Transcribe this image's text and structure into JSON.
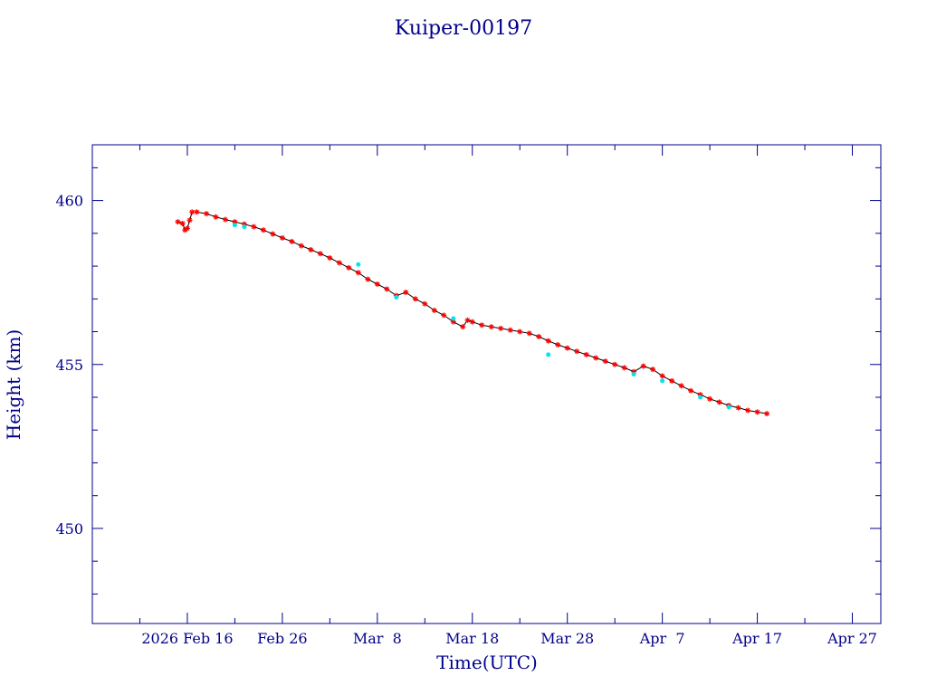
{
  "chart_data": {
    "type": "scatter",
    "title": "Kuiper-00197",
    "xlabel": "Time(UTC)",
    "ylabel": "Height (km)",
    "x_range": [
      "2026-02-06",
      "2026-04-30"
    ],
    "ylim": [
      447.1,
      461.7
    ],
    "x_ticks": [
      {
        "date": "2026-02-16",
        "label": "2026 Feb 16"
      },
      {
        "date": "2026-02-26",
        "label": "Feb 26"
      },
      {
        "date": "2026-03-08",
        "label": "Mar  8"
      },
      {
        "date": "2026-03-18",
        "label": "Mar 18"
      },
      {
        "date": "2026-03-28",
        "label": "Mar 28"
      },
      {
        "date": "2026-04-07",
        "label": "Apr  7"
      },
      {
        "date": "2026-04-17",
        "label": "Apr 17"
      },
      {
        "date": "2026-04-27",
        "label": "Apr 27"
      }
    ],
    "y_ticks": [
      450,
      455,
      460
    ],
    "grid": false,
    "colors": {
      "axis": "#00008b",
      "text": "#00008b",
      "primary": "#ff0000",
      "secondary": "#00e5ee",
      "line": "#000000"
    },
    "series": [
      {
        "marker": "star",
        "color": "#ff0000",
        "points": [
          [
            "2026-02-15",
            459.35
          ],
          [
            "2026-02-15T12:00",
            459.3
          ],
          [
            "2026-02-15T18:00",
            459.1
          ],
          [
            "2026-02-16",
            459.15
          ],
          [
            "2026-02-16T06:00",
            459.4
          ],
          [
            "2026-02-16T12:00",
            459.65
          ],
          [
            "2026-02-17",
            459.65
          ],
          [
            "2026-02-18",
            459.6
          ],
          [
            "2026-02-19",
            459.5
          ],
          [
            "2026-02-20",
            459.42
          ],
          [
            "2026-02-21",
            459.35
          ],
          [
            "2026-02-22",
            459.28
          ],
          [
            "2026-02-23",
            459.2
          ],
          [
            "2026-02-24",
            459.1
          ],
          [
            "2026-02-25",
            458.98
          ],
          [
            "2026-02-26",
            458.86
          ],
          [
            "2026-02-27",
            458.75
          ],
          [
            "2026-02-28",
            458.62
          ],
          [
            "2026-03-01",
            458.5
          ],
          [
            "2026-03-02",
            458.38
          ],
          [
            "2026-03-03",
            458.25
          ],
          [
            "2026-03-04",
            458.1
          ],
          [
            "2026-03-05",
            457.95
          ],
          [
            "2026-03-06",
            457.8
          ],
          [
            "2026-03-07",
            457.6
          ],
          [
            "2026-03-08",
            457.45
          ],
          [
            "2026-03-09",
            457.3
          ],
          [
            "2026-03-10",
            457.1
          ],
          [
            "2026-03-11",
            457.2
          ],
          [
            "2026-03-12",
            457.0
          ],
          [
            "2026-03-13",
            456.85
          ],
          [
            "2026-03-14",
            456.65
          ],
          [
            "2026-03-15",
            456.5
          ],
          [
            "2026-03-16",
            456.3
          ],
          [
            "2026-03-17",
            456.15
          ],
          [
            "2026-03-17T12:00",
            456.35
          ],
          [
            "2026-03-18",
            456.3
          ],
          [
            "2026-03-19",
            456.2
          ],
          [
            "2026-03-20",
            456.15
          ],
          [
            "2026-03-21",
            456.1
          ],
          [
            "2026-03-22",
            456.05
          ],
          [
            "2026-03-23",
            456.0
          ],
          [
            "2026-03-24",
            455.95
          ],
          [
            "2026-03-25",
            455.85
          ],
          [
            "2026-03-26",
            455.72
          ],
          [
            "2026-03-27",
            455.6
          ],
          [
            "2026-03-28",
            455.5
          ],
          [
            "2026-03-29",
            455.4
          ],
          [
            "2026-03-30",
            455.3
          ],
          [
            "2026-03-31",
            455.2
          ],
          [
            "2026-04-01",
            455.1
          ],
          [
            "2026-04-02",
            455.0
          ],
          [
            "2026-04-03",
            454.9
          ],
          [
            "2026-04-04",
            454.78
          ],
          [
            "2026-04-05",
            454.95
          ],
          [
            "2026-04-06",
            454.85
          ],
          [
            "2026-04-07",
            454.65
          ],
          [
            "2026-04-08",
            454.5
          ],
          [
            "2026-04-09",
            454.35
          ],
          [
            "2026-04-10",
            454.2
          ],
          [
            "2026-04-11",
            454.08
          ],
          [
            "2026-04-12",
            453.95
          ],
          [
            "2026-04-13",
            453.85
          ],
          [
            "2026-04-14",
            453.75
          ],
          [
            "2026-04-15",
            453.68
          ],
          [
            "2026-04-16",
            453.6
          ],
          [
            "2026-04-17",
            453.55
          ],
          [
            "2026-04-18",
            453.5
          ]
        ]
      },
      {
        "marker": "dot",
        "color": "#00e5ee",
        "points": [
          [
            "2026-02-21",
            459.25
          ],
          [
            "2026-02-22",
            459.2
          ],
          [
            "2026-03-06",
            458.05
          ],
          [
            "2026-03-10",
            457.05
          ],
          [
            "2026-03-16",
            456.4
          ],
          [
            "2026-03-26",
            455.3
          ],
          [
            "2026-04-04",
            454.7
          ],
          [
            "2026-04-07",
            454.5
          ],
          [
            "2026-04-11",
            454.0
          ],
          [
            "2026-04-14",
            453.7
          ]
        ]
      }
    ]
  }
}
